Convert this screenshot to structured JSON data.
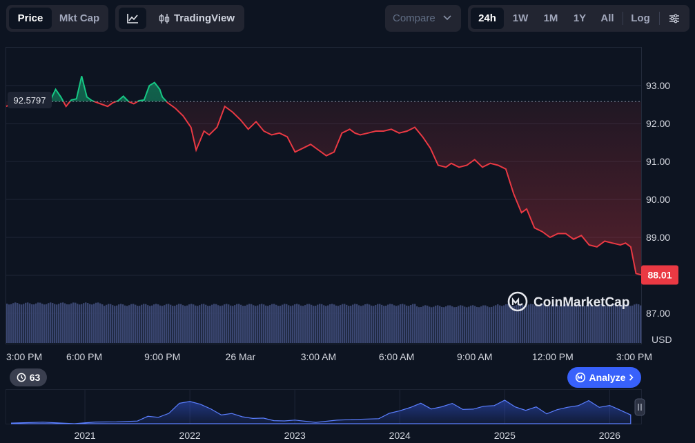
{
  "toolbar": {
    "tabs": [
      {
        "label": "Price",
        "active": true
      },
      {
        "label": "Mkt Cap",
        "active": false
      }
    ],
    "tradingview_label": "TradingView",
    "compare_label": "Compare",
    "ranges": [
      {
        "label": "24h",
        "active": true
      },
      {
        "label": "1W",
        "active": false
      },
      {
        "label": "1M",
        "active": false
      },
      {
        "label": "1Y",
        "active": false
      },
      {
        "label": "All",
        "active": false
      }
    ],
    "log_label": "Log",
    "icons": {
      "line_chart": "line-chart-icon",
      "candles": "candlestick-icon",
      "chevron": "chevron-down-icon",
      "settings": "sliders-icon"
    }
  },
  "colors": {
    "up": "#16c784",
    "down": "#ea3943",
    "background": "#0d1421",
    "volume": "#3a4670",
    "analyze": "#3861fb"
  },
  "watermark": "CoinMarketCap",
  "currency_label": "USD",
  "badge_count": "63",
  "analyze_label": "Analyze",
  "chart_data": {
    "type": "line",
    "currency": "USD",
    "open_price": 92.5797,
    "open_price_label": "92.5797",
    "current_price": 88.01,
    "current_price_label": "88.01",
    "ylim": [
      86.2,
      94.0
    ],
    "yticks": [
      87.0,
      88.0,
      89.0,
      90.0,
      91.0,
      92.0,
      93.0
    ],
    "ytick_labels": [
      "87.00",
      "88.00",
      "89.00",
      "90.00",
      "91.00",
      "92.00",
      "93.00"
    ],
    "xlim_hours": [
      0,
      24.4
    ],
    "xticks": [
      {
        "label": "3:00 PM",
        "t": 0
      },
      {
        "label": "6:00 PM",
        "t": 3
      },
      {
        "label": "9:00 PM",
        "t": 6
      },
      {
        "label": "26 Mar",
        "t": 9
      },
      {
        "label": "3:00 AM",
        "t": 12
      },
      {
        "label": "6:00 AM",
        "t": 15
      },
      {
        "label": "9:00 AM",
        "t": 18
      },
      {
        "label": "12:00 PM",
        "t": 21
      },
      {
        "label": "3:00 PM",
        "t": 24
      }
    ],
    "series": [
      {
        "x": [
          0,
          0.3,
          0.6,
          1.0,
          1.4,
          1.7,
          1.9,
          2.1,
          2.3,
          2.5,
          2.7,
          2.9,
          3.1,
          3.3,
          3.5,
          3.7,
          3.9,
          4.1,
          4.3,
          4.5,
          4.7,
          4.9,
          5.1,
          5.3,
          5.5,
          5.7,
          5.9,
          6.0,
          6.2,
          6.5,
          6.8,
          7.1,
          7.3,
          7.6,
          7.8,
          8.1,
          8.4,
          8.7,
          9.0,
          9.3,
          9.6,
          9.9,
          10.2,
          10.5,
          10.8,
          11.1,
          11.4,
          11.7,
          12.0,
          12.3,
          12.6,
          12.9,
          13.2,
          13.4,
          13.6,
          13.9,
          14.2,
          14.5,
          14.8,
          15.1,
          15.4,
          15.7,
          16.0,
          16.3,
          16.6,
          16.9,
          17.1,
          17.4,
          17.7,
          18.0,
          18.3,
          18.6,
          18.9,
          19.2,
          19.5,
          19.8,
          20.0,
          20.3,
          20.6,
          20.9,
          21.2,
          21.5,
          21.8,
          22.1,
          22.4,
          22.7,
          23.0,
          23.3,
          23.6,
          23.8,
          24.0,
          24.2,
          24.4
        ],
        "y": [
          92.45,
          92.55,
          92.62,
          92.68,
          92.78,
          92.62,
          92.9,
          92.7,
          92.45,
          92.62,
          92.65,
          93.25,
          92.7,
          92.6,
          92.55,
          92.5,
          92.45,
          92.55,
          92.6,
          92.72,
          92.58,
          92.52,
          92.6,
          92.62,
          93.0,
          93.08,
          92.9,
          92.7,
          92.55,
          92.4,
          92.2,
          91.9,
          91.3,
          91.8,
          91.7,
          91.9,
          92.45,
          92.3,
          92.1,
          91.85,
          92.05,
          91.8,
          91.7,
          91.75,
          91.65,
          91.25,
          91.35,
          91.45,
          91.3,
          91.15,
          91.25,
          91.75,
          91.85,
          91.75,
          91.7,
          91.75,
          91.8,
          91.8,
          91.85,
          91.75,
          91.8,
          91.9,
          91.65,
          91.35,
          90.9,
          90.85,
          90.95,
          90.85,
          90.9,
          91.05,
          90.85,
          90.95,
          90.9,
          90.8,
          90.15,
          89.65,
          89.75,
          89.25,
          89.15,
          89.0,
          89.1,
          89.1,
          88.95,
          89.05,
          88.8,
          88.75,
          88.9,
          88.85,
          88.8,
          88.85,
          88.75,
          88.05,
          88.01
        ]
      }
    ],
    "volume_panel": {
      "level": 0.92,
      "note": "volume bars across the session, roughly flat"
    },
    "history": {
      "type": "area",
      "xticks": [
        "2021",
        "2022",
        "2023",
        "2024",
        "2025",
        "2026"
      ],
      "x": [
        2020.3,
        2020.6,
        2020.9,
        2021.1,
        2021.3,
        2021.5,
        2021.6,
        2021.7,
        2021.8,
        2021.9,
        2022.0,
        2022.1,
        2022.2,
        2022.3,
        2022.4,
        2022.5,
        2022.6,
        2022.7,
        2022.8,
        2022.9,
        2023.0,
        2023.2,
        2023.4,
        2023.6,
        2023.8,
        2023.9,
        2024.0,
        2024.1,
        2024.2,
        2024.3,
        2024.4,
        2024.5,
        2024.6,
        2024.7,
        2024.8,
        2024.9,
        2025.0,
        2025.1,
        2025.2,
        2025.3,
        2025.4,
        2025.5,
        2025.6,
        2025.7,
        2025.8,
        2025.9,
        2026.0,
        2026.1,
        2026.2
      ],
      "y": [
        0.02,
        0.02,
        0.02,
        0.03,
        0.05,
        0.12,
        0.2,
        0.22,
        0.35,
        0.62,
        0.75,
        0.62,
        0.45,
        0.32,
        0.3,
        0.22,
        0.2,
        0.14,
        0.12,
        0.1,
        0.08,
        0.08,
        0.1,
        0.12,
        0.2,
        0.3,
        0.42,
        0.55,
        0.62,
        0.5,
        0.55,
        0.62,
        0.5,
        0.45,
        0.55,
        0.62,
        0.72,
        0.55,
        0.45,
        0.5,
        0.35,
        0.45,
        0.5,
        0.62,
        0.72,
        0.52,
        0.62,
        0.4,
        0.3
      ]
    }
  }
}
